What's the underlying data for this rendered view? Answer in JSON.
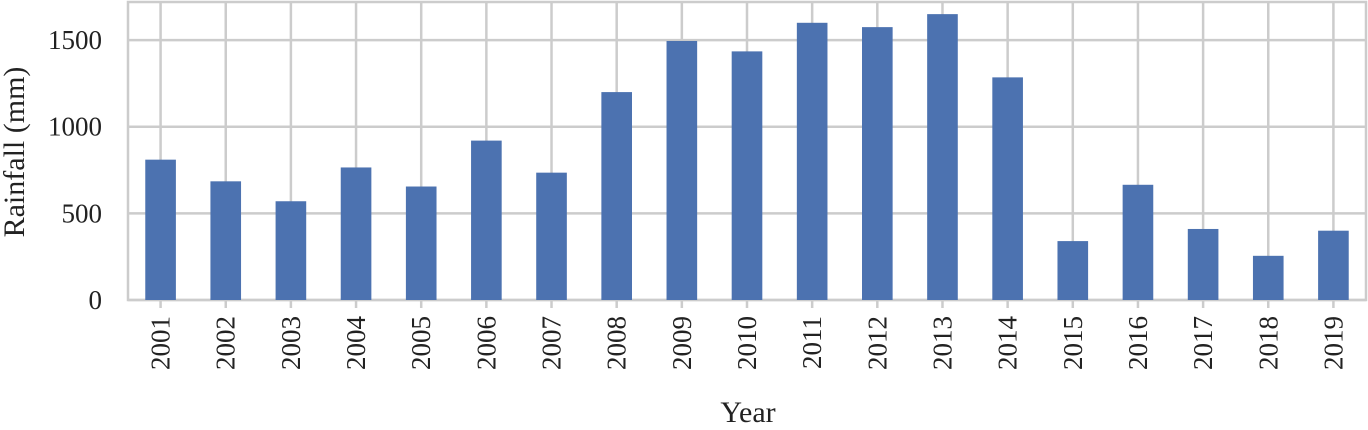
{
  "chart_data": {
    "type": "bar",
    "title": "",
    "xlabel": "Year",
    "ylabel": "Rainfall (mm)",
    "categories": [
      "2001",
      "2002",
      "2003",
      "2004",
      "2005",
      "2006",
      "2007",
      "2008",
      "2009",
      "2010",
      "2011",
      "2012",
      "2013",
      "2014",
      "2015",
      "2016",
      "2017",
      "2018",
      "2019"
    ],
    "values": [
      810,
      685,
      570,
      765,
      655,
      920,
      735,
      1200,
      1495,
      1435,
      1600,
      1575,
      1650,
      1285,
      340,
      665,
      410,
      255,
      400
    ],
    "ylim": [
      0,
      1720
    ],
    "yticks": [
      0,
      500,
      1000,
      1500
    ],
    "grid": true,
    "legend": "none",
    "colors": {
      "bar": "#4c72b0",
      "grid": "#cccccc",
      "background": "#ffffff"
    }
  }
}
